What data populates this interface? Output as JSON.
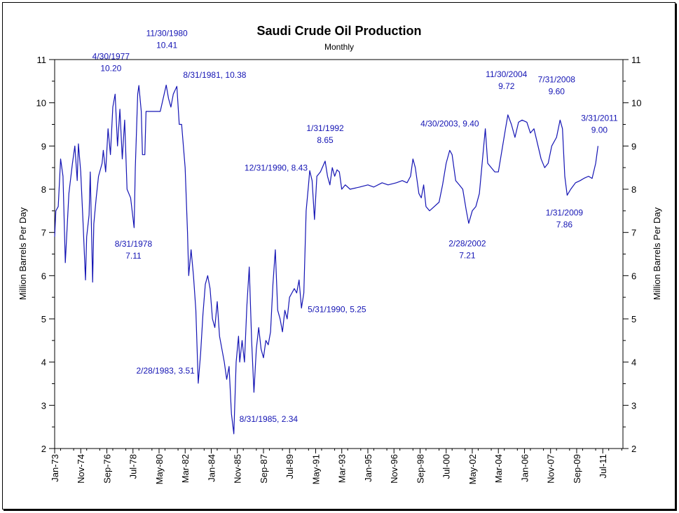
{
  "chart_data": {
    "type": "line",
    "title": "Saudi Crude Oil Production",
    "subtitle": "Monthly",
    "ylabel": "Million Barrels Per Day",
    "ylabel_right": "Million Barrels Per Day",
    "ylim": [
      2,
      11
    ],
    "y_ticks": [
      "2",
      "3",
      "4",
      "5",
      "6",
      "7",
      "8",
      "9",
      "10",
      "11"
    ],
    "x_range": [
      "1973-01",
      "2012-12"
    ],
    "x_ticks": [
      {
        "label": "Jan-73",
        "date": "1973-01"
      },
      {
        "label": "Nov-74",
        "date": "1974-11"
      },
      {
        "label": "Sep-76",
        "date": "1976-09"
      },
      {
        "label": "Jul-78",
        "date": "1978-07"
      },
      {
        "label": "May-80",
        "date": "1980-05"
      },
      {
        "label": "Mar-82",
        "date": "1982-03"
      },
      {
        "label": "Jan-84",
        "date": "1984-01"
      },
      {
        "label": "Nov-85",
        "date": "1985-11"
      },
      {
        "label": "Sep-87",
        "date": "1987-09"
      },
      {
        "label": "Jul-89",
        "date": "1989-07"
      },
      {
        "label": "May-91",
        "date": "1991-05"
      },
      {
        "label": "Mar-93",
        "date": "1993-03"
      },
      {
        "label": "Jan-95",
        "date": "1995-01"
      },
      {
        "label": "Nov-96",
        "date": "1996-11"
      },
      {
        "label": "Sep-98",
        "date": "1998-09"
      },
      {
        "label": "Jul-00",
        "date": "2000-07"
      },
      {
        "label": "May-02",
        "date": "2002-05"
      },
      {
        "label": "Mar-04",
        "date": "2004-03"
      },
      {
        "label": "Jan-06",
        "date": "2006-01"
      },
      {
        "label": "Nov-07",
        "date": "2007-11"
      },
      {
        "label": "Sep-09",
        "date": "2009-09"
      },
      {
        "label": "Jul-11",
        "date": "2011-07"
      }
    ],
    "grid": false,
    "line_color": "#1414b4",
    "annotation_color": "#1414b4",
    "series": [
      {
        "values": [
          [
            "1973-01",
            6.9
          ],
          [
            "1973-02",
            7.5
          ],
          [
            "1973-04",
            7.6
          ],
          [
            "1973-06",
            8.7
          ],
          [
            "1973-08",
            8.3
          ],
          [
            "1973-10",
            6.3
          ],
          [
            "1974-01",
            7.9
          ],
          [
            "1974-04",
            8.6
          ],
          [
            "1974-06",
            9.0
          ],
          [
            "1974-08",
            8.2
          ],
          [
            "1974-09",
            9.05
          ],
          [
            "1974-11",
            8.4
          ],
          [
            "1975-01",
            7.2
          ],
          [
            "1975-03",
            5.9
          ],
          [
            "1975-04",
            6.9
          ],
          [
            "1975-06",
            7.4
          ],
          [
            "1975-07",
            8.4
          ],
          [
            "1975-09",
            5.85
          ],
          [
            "1975-10",
            7.2
          ],
          [
            "1975-12",
            7.8
          ],
          [
            "1976-02",
            8.3
          ],
          [
            "1976-05",
            8.6
          ],
          [
            "1976-06",
            8.9
          ],
          [
            "1976-08",
            8.4
          ],
          [
            "1976-10",
            9.4
          ],
          [
            "1976-12",
            8.8
          ],
          [
            "1977-02",
            9.9
          ],
          [
            "1977-04",
            10.2
          ],
          [
            "1977-06",
            9.0
          ],
          [
            "1977-08",
            9.85
          ],
          [
            "1977-10",
            8.7
          ],
          [
            "1977-12",
            9.6
          ],
          [
            "1978-02",
            8.0
          ],
          [
            "1978-05",
            7.8
          ],
          [
            "1978-08",
            7.11
          ],
          [
            "1978-09",
            8.5
          ],
          [
            "1978-11",
            10.2
          ],
          [
            "1978-12",
            10.4
          ],
          [
            "1979-02",
            9.8
          ],
          [
            "1979-03",
            8.8
          ],
          [
            "1979-05",
            8.8
          ],
          [
            "1979-06",
            9.8
          ],
          [
            "1979-09",
            9.8
          ],
          [
            "1980-03",
            9.8
          ],
          [
            "1980-06",
            9.8
          ],
          [
            "1980-11",
            10.41
          ],
          [
            "1981-01",
            10.1
          ],
          [
            "1981-03",
            9.9
          ],
          [
            "1981-05",
            10.2
          ],
          [
            "1981-08",
            10.38
          ],
          [
            "1981-10",
            9.5
          ],
          [
            "1981-12",
            9.5
          ],
          [
            "1982-03",
            8.5
          ],
          [
            "1982-05",
            7.0
          ],
          [
            "1982-06",
            6.0
          ],
          [
            "1982-08",
            6.6
          ],
          [
            "1982-10",
            6.0
          ],
          [
            "1982-12",
            5.2
          ],
          [
            "1983-02",
            3.51
          ],
          [
            "1983-04",
            4.2
          ],
          [
            "1983-06",
            5.1
          ],
          [
            "1983-08",
            5.8
          ],
          [
            "1983-10",
            6.0
          ],
          [
            "1983-12",
            5.7
          ],
          [
            "1984-02",
            5.0
          ],
          [
            "1984-04",
            4.8
          ],
          [
            "1984-06",
            5.4
          ],
          [
            "1984-08",
            4.6
          ],
          [
            "1984-10",
            4.3
          ],
          [
            "1984-12",
            4.0
          ],
          [
            "1985-02",
            3.6
          ],
          [
            "1985-04",
            3.9
          ],
          [
            "1985-06",
            2.8
          ],
          [
            "1985-08",
            2.34
          ],
          [
            "1985-10",
            4.0
          ],
          [
            "1985-12",
            4.6
          ],
          [
            "1986-01",
            4.0
          ],
          [
            "1986-03",
            4.5
          ],
          [
            "1986-05",
            4.0
          ],
          [
            "1986-07",
            5.3
          ],
          [
            "1986-09",
            6.2
          ],
          [
            "1986-11",
            4.5
          ],
          [
            "1987-01",
            3.3
          ],
          [
            "1987-03",
            4.3
          ],
          [
            "1987-05",
            4.8
          ],
          [
            "1987-07",
            4.3
          ],
          [
            "1987-09",
            4.1
          ],
          [
            "1987-11",
            4.5
          ],
          [
            "1988-01",
            4.4
          ],
          [
            "1988-03",
            4.7
          ],
          [
            "1988-05",
            5.8
          ],
          [
            "1988-07",
            6.6
          ],
          [
            "1988-09",
            5.2
          ],
          [
            "1988-11",
            5.0
          ],
          [
            "1989-01",
            4.7
          ],
          [
            "1989-03",
            5.2
          ],
          [
            "1989-05",
            5.0
          ],
          [
            "1989-07",
            5.5
          ],
          [
            "1989-09",
            5.6
          ],
          [
            "1989-11",
            5.7
          ],
          [
            "1990-01",
            5.6
          ],
          [
            "1990-03",
            5.9
          ],
          [
            "1990-05",
            5.25
          ],
          [
            "1990-07",
            5.6
          ],
          [
            "1990-09",
            7.5
          ],
          [
            "1990-11",
            8.1
          ],
          [
            "1990-12",
            8.43
          ],
          [
            "1991-02",
            8.2
          ],
          [
            "1991-04",
            7.3
          ],
          [
            "1991-06",
            8.3
          ],
          [
            "1991-09",
            8.4
          ],
          [
            "1992-01",
            8.65
          ],
          [
            "1992-03",
            8.3
          ],
          [
            "1992-05",
            8.1
          ],
          [
            "1992-07",
            8.5
          ],
          [
            "1992-09",
            8.3
          ],
          [
            "1992-11",
            8.45
          ],
          [
            "1993-01",
            8.4
          ],
          [
            "1993-03",
            8.0
          ],
          [
            "1993-06",
            8.1
          ],
          [
            "1993-10",
            8.0
          ],
          [
            "1994-06",
            8.05
          ],
          [
            "1995-01",
            8.1
          ],
          [
            "1995-06",
            8.05
          ],
          [
            "1996-01",
            8.15
          ],
          [
            "1996-06",
            8.1
          ],
          [
            "1997-01",
            8.15
          ],
          [
            "1997-06",
            8.2
          ],
          [
            "1997-10",
            8.15
          ],
          [
            "1998-01",
            8.3
          ],
          [
            "1998-03",
            8.7
          ],
          [
            "1998-05",
            8.5
          ],
          [
            "1998-08",
            7.9
          ],
          [
            "1998-10",
            7.8
          ],
          [
            "1998-12",
            8.1
          ],
          [
            "1999-02",
            7.6
          ],
          [
            "1999-05",
            7.5
          ],
          [
            "1999-09",
            7.6
          ],
          [
            "2000-01",
            7.7
          ],
          [
            "2000-04",
            8.1
          ],
          [
            "2000-07",
            8.6
          ],
          [
            "2000-10",
            8.9
          ],
          [
            "2000-12",
            8.8
          ],
          [
            "2001-03",
            8.2
          ],
          [
            "2001-06",
            8.1
          ],
          [
            "2001-09",
            8.0
          ],
          [
            "2001-12",
            7.5
          ],
          [
            "2002-02",
            7.21
          ],
          [
            "2002-05",
            7.5
          ],
          [
            "2002-08",
            7.6
          ],
          [
            "2002-11",
            7.9
          ],
          [
            "2003-01",
            8.5
          ],
          [
            "2003-04",
            9.4
          ],
          [
            "2003-06",
            8.6
          ],
          [
            "2003-09",
            8.5
          ],
          [
            "2003-12",
            8.4
          ],
          [
            "2004-03",
            8.4
          ],
          [
            "2004-06",
            8.9
          ],
          [
            "2004-09",
            9.4
          ],
          [
            "2004-11",
            9.72
          ],
          [
            "2005-02",
            9.5
          ],
          [
            "2005-05",
            9.2
          ],
          [
            "2005-08",
            9.55
          ],
          [
            "2005-11",
            9.6
          ],
          [
            "2006-03",
            9.55
          ],
          [
            "2006-06",
            9.3
          ],
          [
            "2006-09",
            9.4
          ],
          [
            "2006-12",
            9.05
          ],
          [
            "2007-03",
            8.7
          ],
          [
            "2007-06",
            8.5
          ],
          [
            "2007-09",
            8.6
          ],
          [
            "2007-12",
            9.0
          ],
          [
            "2008-04",
            9.2
          ],
          [
            "2008-07",
            9.6
          ],
          [
            "2008-09",
            9.4
          ],
          [
            "2008-11",
            8.3
          ],
          [
            "2009-01",
            7.86
          ],
          [
            "2009-04",
            8.0
          ],
          [
            "2009-08",
            8.15
          ],
          [
            "2009-12",
            8.2
          ],
          [
            "2010-03",
            8.25
          ],
          [
            "2010-07",
            8.3
          ],
          [
            "2010-10",
            8.25
          ],
          [
            "2011-01",
            8.6
          ],
          [
            "2011-03",
            9.0
          ]
        ]
      }
    ],
    "annotations": [
      {
        "lines": [
          "4/30/1977",
          "10.20"
        ]
      },
      {
        "lines": [
          "11/30/1980",
          "10.41"
        ]
      },
      {
        "lines": [
          "8/31/1981, 10.38"
        ]
      },
      {
        "lines": [
          "8/31/1978",
          "7.11"
        ]
      },
      {
        "lines": [
          "2/28/1983, 3.51"
        ]
      },
      {
        "lines": [
          "8/31/1985, 2.34"
        ]
      },
      {
        "lines": [
          "12/31/1990, 8.43"
        ]
      },
      {
        "lines": [
          "1/31/1992",
          "8.65"
        ]
      },
      {
        "lines": [
          "5/31/1990, 5.25"
        ]
      },
      {
        "lines": [
          "4/30/2003, 9.40"
        ]
      },
      {
        "lines": [
          "11/30/2004",
          "9.72"
        ]
      },
      {
        "lines": [
          "7/31/2008",
          "9.60"
        ]
      },
      {
        "lines": [
          "3/31/2011",
          "9.00"
        ]
      },
      {
        "lines": [
          "2/28/2002",
          "7.21"
        ]
      },
      {
        "lines": [
          "1/31/2009",
          "7.86"
        ]
      }
    ]
  }
}
